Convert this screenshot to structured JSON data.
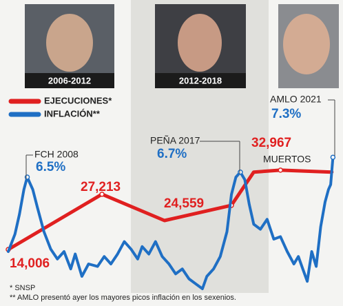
{
  "photos": [
    "2006-2012",
    "2012-2018"
  ],
  "footnotes": [
    "* SNSP",
    "** AMLO presentó ayer los mayores picos inflación en los sexenios."
  ],
  "chart_data": {
    "type": "line",
    "annotations": [
      "FCH 2008",
      "PEÑA 2017",
      "AMLO 2021",
      "MUERTOS"
    ],
    "xlim": [
      2007,
      2021.6
    ],
    "ylim": [
      1650,
      40200
    ],
    "y2lim": [
      1.5,
      8
    ],
    "series": [
      {
        "name": "EJECUCIONES*",
        "color": "#e02020",
        "x": [
          2007,
          2011.2,
          2014,
          2017,
          2018,
          2019.2,
          2021.5
        ],
        "values": [
          14006,
          27213,
          20925,
          24559,
          32500,
          32967,
          32500
        ],
        "value_labels": [
          "14,006",
          "27,213",
          null,
          "24,559",
          null,
          "32,967",
          null
        ]
      },
      {
        "name": "INFLACIÓN**",
        "color": "#1f6fc4",
        "axis": "y2",
        "x": [
          2007.0,
          2007.3,
          2007.5,
          2007.7,
          2007.85,
          2008.1,
          2008.3,
          2008.6,
          2008.9,
          2009.2,
          2009.5,
          2009.8,
          2010.0,
          2010.3,
          2010.6,
          2011.0,
          2011.3,
          2011.6,
          2011.9,
          2012.2,
          2012.5,
          2012.8,
          2013.0,
          2013.3,
          2013.6,
          2013.9,
          2014.2,
          2014.5,
          2014.8,
          2015.1,
          2015.4,
          2015.7,
          2015.9,
          2016.2,
          2016.5,
          2016.8,
          2017.0,
          2017.2,
          2017.4,
          2017.6,
          2017.8,
          2018.0,
          2018.3,
          2018.6,
          2018.9,
          2019.2,
          2019.5,
          2019.8,
          2020.0,
          2020.2,
          2020.4,
          2020.6,
          2020.8,
          2021.0,
          2021.2,
          2021.35,
          2021.45,
          2021.55
        ],
        "values": [
          3.5,
          4.2,
          5.0,
          6.0,
          6.5,
          6.0,
          5.3,
          4.3,
          3.6,
          3.2,
          3.5,
          2.8,
          3.4,
          2.5,
          3.0,
          2.9,
          3.3,
          3.0,
          3.4,
          3.9,
          3.6,
          3.2,
          3.7,
          3.4,
          3.9,
          3.3,
          3.0,
          2.6,
          2.8,
          2.4,
          2.2,
          2.0,
          2.5,
          2.8,
          3.3,
          4.3,
          5.8,
          6.5,
          6.7,
          6.4,
          5.4,
          4.6,
          4.4,
          4.8,
          4.0,
          4.1,
          3.5,
          3.0,
          3.3,
          2.8,
          2.3,
          3.5,
          2.9,
          4.5,
          5.5,
          6.0,
          6.2,
          7.3
        ],
        "value_labels": [
          null,
          null,
          null,
          null,
          "6.5%",
          null,
          null,
          null,
          null,
          null,
          null,
          null,
          null,
          null,
          null,
          null,
          null,
          null,
          null,
          null,
          null,
          null,
          null,
          null,
          null,
          null,
          null,
          null,
          null,
          null,
          null,
          null,
          null,
          null,
          null,
          null,
          null,
          null,
          "6.7%",
          null,
          null,
          null,
          null,
          null,
          null,
          null,
          null,
          null,
          null,
          null,
          null,
          null,
          null,
          null,
          null,
          null,
          null,
          "7.3%"
        ]
      }
    ]
  }
}
